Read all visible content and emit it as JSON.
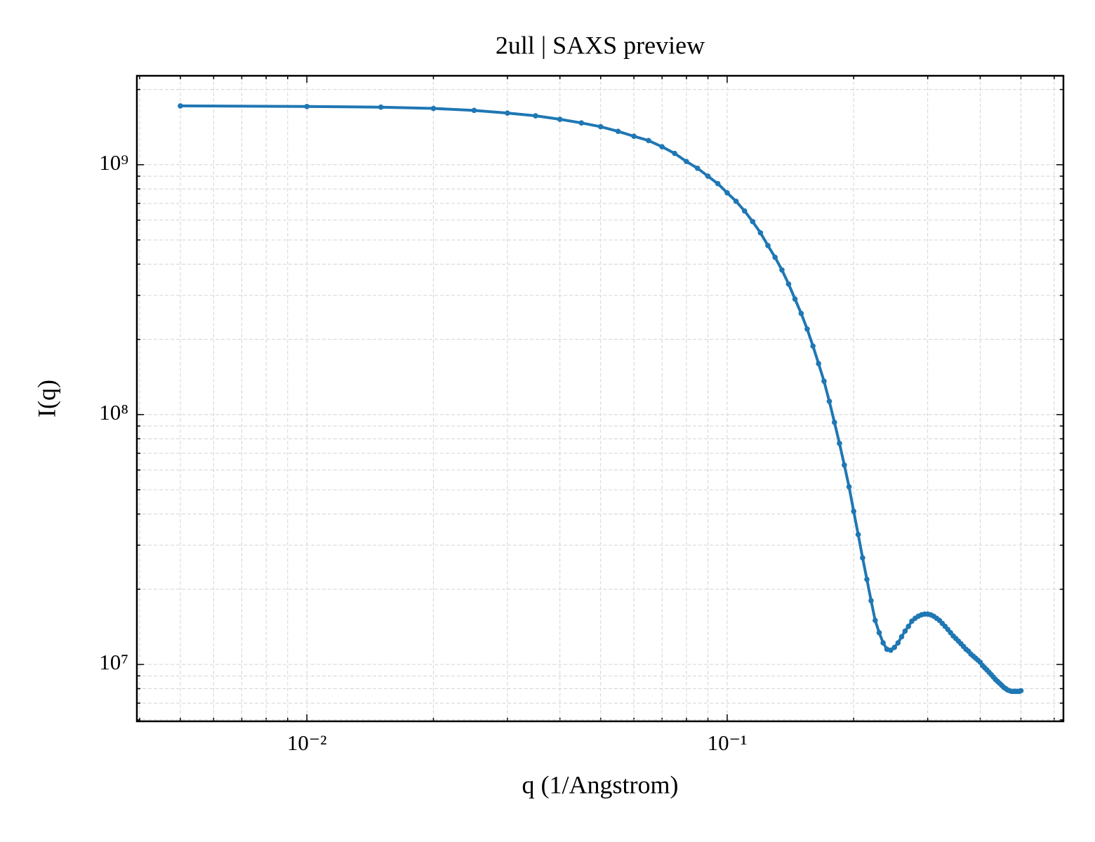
{
  "chart_data": {
    "type": "line",
    "title": "2ull | SAXS preview",
    "x_label": "q (1/Angstrom)",
    "y_label": "I(q)",
    "xscale": "log",
    "yscale": "log",
    "grid": true,
    "marker": true,
    "xlim": [
      0.00394,
      0.631
    ],
    "ylim": [
      5920000,
      2270000000
    ],
    "xticks": [
      {
        "value": 0.01,
        "label": "10⁻²"
      },
      {
        "value": 0.1,
        "label": "10⁻¹"
      }
    ],
    "yticks": [
      {
        "value": 10000000,
        "label": "10⁷"
      },
      {
        "value": 100000000,
        "label": "10⁸"
      },
      {
        "value": 1000000000,
        "label": "10⁹"
      }
    ],
    "xminorticks": [
      0.004,
      0.005,
      0.006,
      0.007,
      0.008,
      0.009,
      0.02,
      0.03,
      0.04,
      0.05,
      0.06,
      0.07,
      0.08,
      0.09,
      0.2,
      0.3,
      0.4,
      0.5,
      0.6
    ],
    "yminorticks": [
      6000000,
      7000000,
      8000000,
      9000000,
      20000000,
      30000000,
      40000000,
      50000000,
      60000000,
      70000000,
      80000000,
      90000000,
      200000000,
      300000000,
      400000000,
      500000000,
      600000000,
      700000000,
      800000000,
      900000000,
      2000000000
    ],
    "x": [
      0.005,
      0.01,
      0.015,
      0.02,
      0.025,
      0.03,
      0.035,
      0.04,
      0.045,
      0.05,
      0.055,
      0.06,
      0.065,
      0.07,
      0.075,
      0.08,
      0.085,
      0.09,
      0.095,
      0.1,
      0.105,
      0.11,
      0.115,
      0.12,
      0.125,
      0.13,
      0.135,
      0.14,
      0.145,
      0.15,
      0.155,
      0.16,
      0.165,
      0.17,
      0.175,
      0.18,
      0.185,
      0.19,
      0.195,
      0.2,
      0.205,
      0.21,
      0.215,
      0.22,
      0.225,
      0.23,
      0.235,
      0.24,
      0.245,
      0.25,
      0.255,
      0.26,
      0.265,
      0.27,
      0.275,
      0.28,
      0.285,
      0.29,
      0.295,
      0.3,
      0.305,
      0.31,
      0.315,
      0.32,
      0.325,
      0.33,
      0.335,
      0.34,
      0.345,
      0.35,
      0.355,
      0.36,
      0.365,
      0.37,
      0.375,
      0.38,
      0.385,
      0.39,
      0.395,
      0.4,
      0.405,
      0.41,
      0.415,
      0.42,
      0.425,
      0.43,
      0.435,
      0.44,
      0.445,
      0.45,
      0.455,
      0.46,
      0.465,
      0.47,
      0.475,
      0.48,
      0.485,
      0.49,
      0.495,
      0.5
    ],
    "series": [
      {
        "color": "#1f77b4",
        "values": [
          1720000000,
          1710000000,
          1700000000,
          1680000000,
          1650000000,
          1610000000,
          1570000000,
          1520000000,
          1470000000,
          1420000000,
          1360000000,
          1300000000,
          1250000000,
          1180000000,
          1110000000,
          1030000000,
          968000000,
          900000000,
          840000000,
          772000000,
          714000000,
          653000000,
          592000000,
          534000000,
          475000000,
          426000000,
          379000000,
          333000000,
          290000000,
          254000000,
          220000000,
          188000000,
          160000000,
          136000000,
          113000000,
          93100000,
          76700000,
          62800000,
          51400000,
          41000000,
          33100000,
          26700000,
          21900000,
          18000000,
          15000000,
          13400000,
          12200000,
          11500000,
          11400000,
          11700000,
          12200000,
          12900000,
          13600000,
          14200000,
          14900000,
          15300000,
          15600000,
          15800000,
          15900000,
          15900000,
          15800000,
          15600000,
          15300000,
          15000000,
          14600000,
          14200000,
          13800000,
          13400000,
          13000000,
          12700000,
          12400000,
          12100000,
          11800000,
          11500000,
          11300000,
          11000000,
          10800000,
          10600000,
          10400000,
          10200000,
          9900000,
          9700000,
          9500000,
          9300000,
          9100000,
          8900000,
          8700000,
          8550000,
          8400000,
          8250000,
          8100000,
          8000000,
          7900000,
          7850000,
          7800000,
          7800000,
          7800000,
          7800000,
          7800000,
          7850000
        ]
      }
    ]
  }
}
